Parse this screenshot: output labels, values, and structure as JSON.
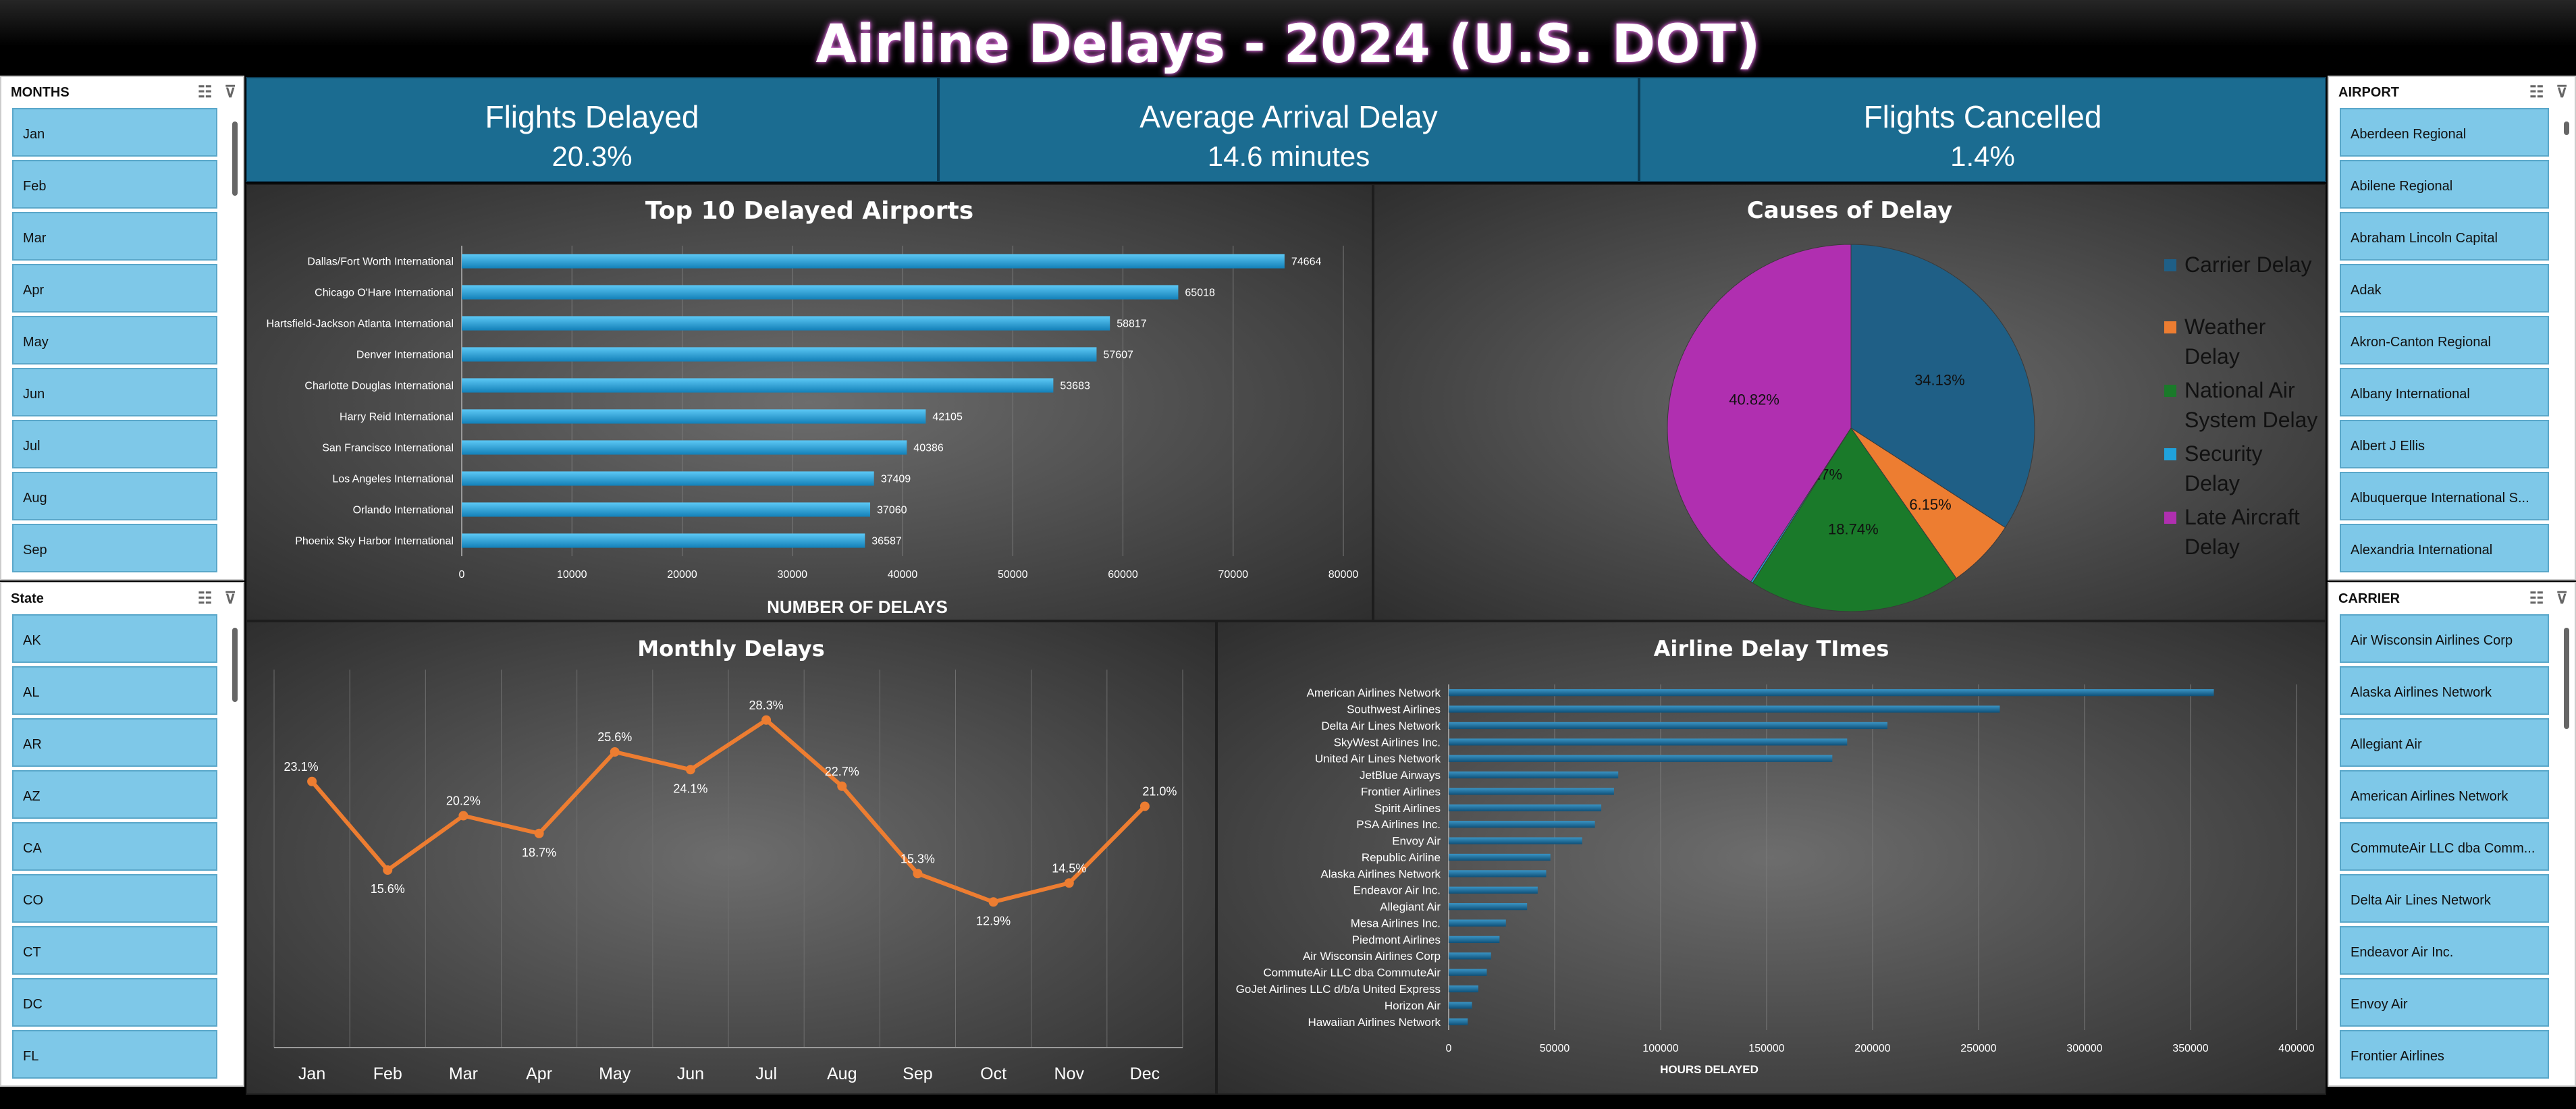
{
  "title": "Airline Delays - 2024 (U.S. DOT)",
  "icons": {
    "multiselect": "multi-select-icon",
    "clear_filter": "clear-filter-icon"
  },
  "colors": {
    "kpi_bg": "#1b6c91",
    "slicer_item": "#7ec8e8",
    "bar": "#1fa2dc",
    "line": "#ed7d31",
    "carrier": "#1f5f86",
    "weather": "#ed7d31",
    "nas": "#1a7a2a",
    "security": "#1fa2dc",
    "late_aircraft": "#b02fb0"
  },
  "slicers": {
    "months": {
      "title": "MONTHS",
      "items": [
        "Jan",
        "Feb",
        "Mar",
        "Apr",
        "May",
        "Jun",
        "Jul",
        "Aug",
        "Sep"
      ]
    },
    "state": {
      "title": "State",
      "items": [
        "AK",
        "AL",
        "AR",
        "AZ",
        "CA",
        "CO",
        "CT",
        "DC",
        "FL"
      ]
    },
    "airport": {
      "title": "AIRPORT",
      "items": [
        "Aberdeen Regional",
        "Abilene Regional",
        "Abraham Lincoln Capital",
        "Adak",
        "Akron-Canton Regional",
        "Albany International",
        "Albert J Ellis",
        "Albuquerque International S...",
        "Alexandria International"
      ]
    },
    "carrier": {
      "title": "CARRIER",
      "items": [
        "Air Wisconsin Airlines Corp",
        "Alaska Airlines Network",
        "Allegiant Air",
        "American Airlines Network",
        "CommuteAir LLC dba Comm...",
        "Delta Air Lines Network",
        "Endeavor Air Inc.",
        "Envoy Air",
        "Frontier Airlines"
      ]
    }
  },
  "kpis": [
    {
      "label": "Flights Delayed",
      "value": "20.3%"
    },
    {
      "label": "Average Arrival Delay",
      "value": "14.6 minutes"
    },
    {
      "label": "Flights Cancelled",
      "value": "1.4%"
    }
  ],
  "chart_data": [
    {
      "type": "bar",
      "orientation": "horizontal",
      "title": "Top 10 Delayed Airports",
      "xlabel": "NUMBER OF DELAYS",
      "categories": [
        "Dallas/Fort Worth International",
        "Chicago O'Hare International",
        "Hartsfield-Jackson Atlanta International",
        "Denver International",
        "Charlotte Douglas International",
        "Harry Reid International",
        "San Francisco International",
        "Los Angeles International",
        "Orlando International",
        "Phoenix Sky Harbor International"
      ],
      "values": [
        74664,
        65018,
        58817,
        57607,
        53683,
        42105,
        40386,
        37409,
        37060,
        36587
      ],
      "xlim": [
        0,
        80000
      ],
      "xticks": [
        0,
        10000,
        20000,
        30000,
        40000,
        50000,
        60000,
        70000,
        80000
      ],
      "data_labels": true,
      "grid": "vertical"
    },
    {
      "type": "pie",
      "title": "Causes of Delay",
      "labels": [
        "Carrier Delay",
        "Weather Delay",
        "National Air System Delay",
        "Security Delay",
        "Late Aircraft Delay"
      ],
      "legend_lines": [
        [
          "Carrier Delay"
        ],
        [
          "Weather",
          "Delay"
        ],
        [
          "National Air",
          "System Delay"
        ],
        [
          "Security",
          "Delay"
        ],
        [
          "Late Aircraft",
          "Delay"
        ]
      ],
      "values": [
        34.13,
        6.15,
        18.74,
        0.17,
        40.82
      ],
      "value_labels": [
        "34.13%",
        "6.15%",
        "18.74%",
        "0.17%",
        "40.82%"
      ],
      "legend": "right"
    },
    {
      "type": "line",
      "title": "Monthly Delays",
      "categories": [
        "Jan",
        "Feb",
        "Mar",
        "Apr",
        "May",
        "Jun",
        "Jul",
        "Aug",
        "Sep",
        "Oct",
        "Nov",
        "Dec"
      ],
      "values": [
        23.1,
        15.6,
        20.2,
        18.7,
        25.6,
        24.1,
        28.3,
        22.7,
        15.3,
        12.9,
        14.5,
        21.0
      ],
      "value_labels": [
        "23.1%",
        "15.6%",
        "20.2%",
        "18.7%",
        "25.6%",
        "24.1%",
        "28.3%",
        "22.7%",
        "15.3%",
        "12.9%",
        "14.5%",
        "21.0%"
      ],
      "grid": "vertical"
    },
    {
      "type": "bar",
      "orientation": "horizontal",
      "title": "Airline Delay TImes",
      "xlabel": "HOURS DELAYED",
      "categories": [
        "American Airlines Network",
        "Southwest Airlines",
        "Delta Air Lines Network",
        "SkyWest Airlines Inc.",
        "United Air Lines Network",
        "JetBlue Airways",
        "Frontier Airlines",
        "Spirit Airlines",
        "PSA Airlines Inc.",
        "Envoy Air",
        "Republic Airline",
        "Alaska Airlines Network",
        "Endeavor Air Inc.",
        "Allegiant Air",
        "Mesa Airlines Inc.",
        "Piedmont Airlines",
        "Air Wisconsin Airlines Corp",
        "CommuteAir LLC dba CommuteAir",
        "GoJet Airlines LLC d/b/a United Express",
        "Horizon Air",
        "Hawaiian Airlines Network"
      ],
      "values": [
        361000,
        260000,
        207000,
        188000,
        181000,
        80000,
        78000,
        72000,
        69000,
        63000,
        48000,
        46000,
        42000,
        37000,
        27000,
        24000,
        20000,
        18000,
        14000,
        11000,
        9000
      ],
      "xlim": [
        0,
        400000
      ],
      "xticks": [
        0,
        50000,
        100000,
        150000,
        200000,
        250000,
        300000,
        350000,
        400000
      ],
      "grid": "vertical"
    }
  ]
}
